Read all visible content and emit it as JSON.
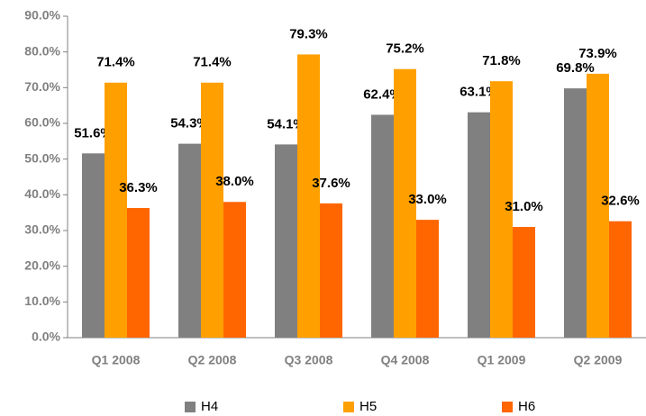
{
  "chart_data": {
    "type": "bar",
    "categories": [
      "Q1 2008",
      "Q2 2008",
      "Q3 2008",
      "Q4 2008",
      "Q1 2009",
      "Q2 2009"
    ],
    "series": [
      {
        "name": "H4",
        "color": "#808080",
        "values": [
          51.6,
          54.3,
          54.1,
          62.4,
          63.1,
          69.8
        ],
        "value_labels": [
          "51.6%",
          "54.3%",
          "54.1%",
          "62.4%",
          "63.1%",
          "69.8%"
        ]
      },
      {
        "name": "H5",
        "color": "#ffa000",
        "values": [
          71.4,
          71.4,
          79.3,
          75.2,
          71.8,
          73.9
        ],
        "value_labels": [
          "71.4%",
          "71.4%",
          "79.3%",
          "75.2%",
          "71.8%",
          "73.9%"
        ]
      },
      {
        "name": "H6",
        "color": "#ff6600",
        "values": [
          36.3,
          38.0,
          37.6,
          33.0,
          31.0,
          32.6
        ],
        "value_labels": [
          "36.3%",
          "38.0%",
          "37.6%",
          "33.0%",
          "31.0%",
          "32.6%"
        ]
      }
    ],
    "ylim": [
      0,
      90
    ],
    "yticks": [
      {
        "value": 0,
        "label": "0.0%"
      },
      {
        "value": 10,
        "label": "10.0%"
      },
      {
        "value": 20,
        "label": "20.0%"
      },
      {
        "value": 30,
        "label": "30.0%"
      },
      {
        "value": 40,
        "label": "40.0%"
      },
      {
        "value": 50,
        "label": "50.0%"
      },
      {
        "value": 60,
        "label": "60.0%"
      },
      {
        "value": 70,
        "label": "70.0%"
      },
      {
        "value": 80,
        "label": "80.0%"
      },
      {
        "value": 90,
        "label": "90.0%"
      }
    ],
    "grid": false,
    "legend": "bottom"
  }
}
